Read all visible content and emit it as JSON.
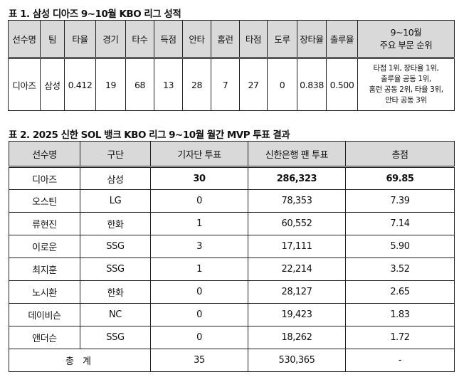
{
  "table1": {
    "title": "표 1. 삼성 디아즈 9~10월 KBO 리그 성적",
    "headers": [
      "선수명",
      "팀",
      "타율",
      "경기",
      "타수",
      "득점",
      "안타",
      "홈런",
      "타점",
      "도루",
      "장타율",
      "출루율"
    ],
    "last_header": [
      "9~10월",
      "주요 부문 순위"
    ],
    "row": [
      "디아즈",
      "삼성",
      "0.412",
      "19",
      "68",
      "13",
      "28",
      "7",
      "27",
      "0",
      "0.838",
      "0.500"
    ],
    "ranks": [
      "타점 1위, 장타율 1위,",
      "출루율 공동 1위,",
      "홈런 공동 2위, 타율 3위,",
      "안타 공동 3위"
    ]
  },
  "table2": {
    "title": "표 2. 2025 신한 SOL 뱅크 KBO 리그 9~10월 월간 MVP 투표 결과",
    "headers": [
      "선수명",
      "구단",
      "기자단 투표",
      "신한은행 팬 투표",
      "총점"
    ],
    "rows": [
      [
        "디아즈",
        "삼성",
        "30",
        "286,323",
        "69.85"
      ],
      [
        "오스틴",
        "LG",
        "0",
        "78,353",
        "7.39"
      ],
      [
        "류현진",
        "한화",
        "1",
        "60,552",
        "7.14"
      ],
      [
        "이로운",
        "SSG",
        "3",
        "17,111",
        "5.90"
      ],
      [
        "최지훈",
        "SSG",
        "1",
        "22,214",
        "3.52"
      ],
      [
        "노시환",
        "한화",
        "0",
        "28,127",
        "2.65"
      ],
      [
        "데이비슨",
        "NC",
        "0",
        "19,423",
        "1.83"
      ],
      [
        "앤더슨",
        "SSG",
        "0",
        "18,262",
        "1.72"
      ]
    ],
    "total": [
      "총 계",
      "35",
      "530,365",
      "-"
    ]
  }
}
